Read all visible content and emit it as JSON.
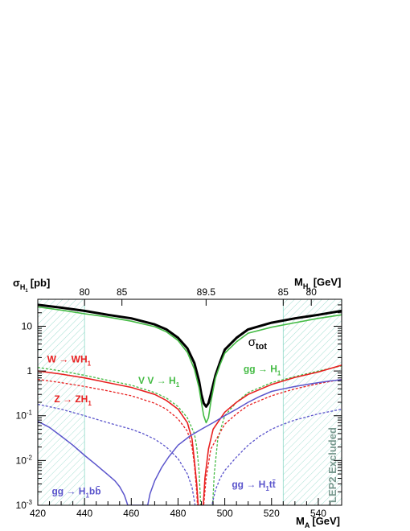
{
  "chart_data": {
    "type": "line",
    "y_axis": {
      "symbol": "σ",
      "subscript": "H",
      "subsubscript": "1",
      "unit": "[pb]",
      "scale": "log",
      "range": [
        0.001,
        40
      ],
      "ticks": [
        {
          "value": 10,
          "label": "10"
        },
        {
          "value": 1,
          "label": "1"
        },
        {
          "value": 0.1,
          "label": "10",
          "exp": "-1"
        },
        {
          "value": 0.01,
          "label": "10",
          "exp": "-2"
        },
        {
          "value": 0.001,
          "label": "10",
          "exp": "-3"
        }
      ]
    },
    "x_axis": {
      "symbol": "M",
      "subscript": "A",
      "unit": "[GeV]",
      "range": [
        420,
        550
      ],
      "ticks": [
        420,
        440,
        460,
        480,
        500,
        520,
        540
      ]
    },
    "top_axis": {
      "symbol": "M",
      "subscript": "H",
      "subsubscript": "1",
      "unit": "[GeV]",
      "ticks": [
        {
          "label": "80",
          "at": 440
        },
        {
          "label": "85",
          "at": 456
        },
        {
          "label": "89.5",
          "at": 492
        },
        {
          "label": "85",
          "at": 525
        },
        {
          "label": "80",
          "at": 537
        }
      ]
    },
    "excluded_regions": [
      {
        "from": 420,
        "to": 440
      },
      {
        "from": 525,
        "to": 550
      }
    ],
    "excluded_label": "LEP2 Excluded",
    "series": [
      {
        "key": "tot",
        "color": "#000000",
        "width": 3.0,
        "dash": "",
        "label": {
          "main": "σ",
          "sub": "tot",
          "at": [
            510,
            3.6
          ],
          "color": "#000000"
        },
        "points": [
          [
            420,
            30
          ],
          [
            430,
            26
          ],
          [
            440,
            22
          ],
          [
            450,
            18
          ],
          [
            460,
            15
          ],
          [
            470,
            11
          ],
          [
            475,
            8.5
          ],
          [
            480,
            5.5
          ],
          [
            484,
            3.2
          ],
          [
            487,
            1.5
          ],
          [
            489,
            0.6
          ],
          [
            490,
            0.3
          ],
          [
            491,
            0.19
          ],
          [
            492,
            0.16
          ],
          [
            493,
            0.19
          ],
          [
            494,
            0.3
          ],
          [
            496,
            0.8
          ],
          [
            498,
            1.6
          ],
          [
            500,
            3.0
          ],
          [
            505,
            5.5
          ],
          [
            510,
            8.5
          ],
          [
            520,
            12
          ],
          [
            530,
            15
          ],
          [
            540,
            18
          ],
          [
            550,
            22
          ]
        ]
      },
      {
        "key": "gg_H",
        "color": "#44bb44",
        "width": 1.6,
        "dash": "",
        "label": {
          "main": "gg → H",
          "sub": "1",
          "at": [
            508,
            0.95
          ],
          "color": "#44bb44"
        },
        "points": [
          [
            420,
            27
          ],
          [
            430,
            23
          ],
          [
            440,
            19
          ],
          [
            450,
            16
          ],
          [
            460,
            13
          ],
          [
            470,
            9.8
          ],
          [
            475,
            7.5
          ],
          [
            480,
            4.8
          ],
          [
            484,
            2.6
          ],
          [
            487,
            1.1
          ],
          [
            489,
            0.42
          ],
          [
            490,
            0.2
          ],
          [
            491,
            0.1
          ],
          [
            492,
            0.07
          ],
          [
            493,
            0.09
          ],
          [
            494,
            0.2
          ],
          [
            496,
            0.7
          ],
          [
            498,
            1.4
          ],
          [
            500,
            2.5
          ],
          [
            505,
            4.5
          ],
          [
            510,
            7
          ],
          [
            520,
            9.5
          ],
          [
            530,
            12
          ],
          [
            540,
            15
          ],
          [
            550,
            18
          ]
        ]
      },
      {
        "key": "VV_H",
        "color": "#44bb44",
        "width": 1.3,
        "dash": "3,2",
        "label": {
          "main": "V V → H",
          "sub": "1",
          "at": [
            463,
            0.52
          ],
          "color": "#44bb44"
        },
        "points": [
          [
            420,
            1.2
          ],
          [
            430,
            1.0
          ],
          [
            440,
            0.8
          ],
          [
            450,
            0.62
          ],
          [
            460,
            0.48
          ],
          [
            470,
            0.33
          ],
          [
            475,
            0.25
          ],
          [
            480,
            0.16
          ],
          [
            484,
            0.09
          ],
          [
            487,
            0.04
          ],
          [
            488,
            0.02
          ],
          [
            489,
            0.006
          ],
          [
            489.7,
            0.001
          ],
          [
            494.8,
            0.001
          ],
          [
            495.5,
            0.005
          ],
          [
            497,
            0.03
          ],
          [
            500,
            0.1
          ],
          [
            505,
            0.2
          ],
          [
            510,
            0.33
          ],
          [
            520,
            0.55
          ],
          [
            530,
            0.75
          ],
          [
            540,
            1.0
          ],
          [
            550,
            1.3
          ]
        ]
      },
      {
        "key": "W_WH",
        "color": "#e82020",
        "width": 1.6,
        "dash": "",
        "label": {
          "main": "W → WH",
          "sub": "1",
          "at": [
            424,
            1.55
          ],
          "color": "#e82020"
        },
        "points": [
          [
            420,
            1.0
          ],
          [
            430,
            0.85
          ],
          [
            440,
            0.7
          ],
          [
            450,
            0.55
          ],
          [
            460,
            0.43
          ],
          [
            470,
            0.3
          ],
          [
            475,
            0.22
          ],
          [
            480,
            0.14
          ],
          [
            484,
            0.07
          ],
          [
            486,
            0.03
          ],
          [
            487,
            0.01
          ],
          [
            488,
            0.003
          ],
          [
            488.6,
            0.001
          ],
          [
            490.8,
            0.001
          ],
          [
            491.5,
            0.004
          ],
          [
            493,
            0.018
          ],
          [
            495,
            0.05
          ],
          [
            500,
            0.12
          ],
          [
            505,
            0.2
          ],
          [
            510,
            0.3
          ],
          [
            520,
            0.5
          ],
          [
            530,
            0.72
          ],
          [
            540,
            0.95
          ],
          [
            550,
            1.35
          ]
        ]
      },
      {
        "key": "Z_ZH",
        "color": "#e82020",
        "width": 1.3,
        "dash": "3,2",
        "label": {
          "main": "Z → ZH",
          "sub": "1",
          "at": [
            427,
            0.2
          ],
          "color": "#e82020"
        },
        "points": [
          [
            420,
            0.65
          ],
          [
            430,
            0.55
          ],
          [
            440,
            0.45
          ],
          [
            450,
            0.36
          ],
          [
            460,
            0.28
          ],
          [
            470,
            0.19
          ],
          [
            475,
            0.14
          ],
          [
            480,
            0.085
          ],
          [
            484,
            0.045
          ],
          [
            486,
            0.02
          ],
          [
            487,
            0.008
          ],
          [
            488,
            0.002
          ],
          [
            488.3,
            0.001
          ],
          [
            491,
            0.001
          ],
          [
            492,
            0.004
          ],
          [
            494,
            0.018
          ],
          [
            500,
            0.065
          ],
          [
            505,
            0.11
          ],
          [
            510,
            0.17
          ],
          [
            520,
            0.28
          ],
          [
            530,
            0.4
          ],
          [
            540,
            0.52
          ],
          [
            550,
            0.65
          ]
        ]
      },
      {
        "key": "gg_Hbb",
        "color": "#5b55cc",
        "width": 1.5,
        "dash": "",
        "label": {
          "main": "gg → H",
          "sub": "1",
          "tail": "bb̄",
          "at": [
            426,
            0.00175
          ],
          "color": "#5b55cc"
        },
        "points": [
          [
            420,
            0.075
          ],
          [
            425,
            0.055
          ],
          [
            430,
            0.035
          ],
          [
            435,
            0.022
          ],
          [
            440,
            0.013
          ],
          [
            445,
            0.008
          ],
          [
            450,
            0.0048
          ],
          [
            453,
            0.0035
          ],
          [
            455,
            0.0026
          ],
          [
            457,
            0.0017
          ],
          [
            458,
            0.0012
          ],
          [
            458.5,
            0.001
          ],
          [
            467,
            0.001
          ],
          [
            468,
            0.0018
          ],
          [
            470,
            0.0035
          ],
          [
            473,
            0.007
          ],
          [
            476,
            0.012
          ],
          [
            480,
            0.022
          ],
          [
            485,
            0.035
          ],
          [
            490,
            0.05
          ],
          [
            495,
            0.07
          ],
          [
            500,
            0.1
          ],
          [
            505,
            0.14
          ],
          [
            510,
            0.2
          ],
          [
            515,
            0.27
          ],
          [
            520,
            0.35
          ],
          [
            525,
            0.4
          ],
          [
            530,
            0.45
          ],
          [
            535,
            0.5
          ],
          [
            540,
            0.55
          ],
          [
            545,
            0.6
          ],
          [
            550,
            0.64
          ]
        ]
      },
      {
        "key": "gg_Htt",
        "color": "#5b55cc",
        "width": 1.3,
        "dash": "3,2",
        "label": {
          "main": "gg → H",
          "sub": "1",
          "tail": "tt̄",
          "at": [
            503,
            0.0025
          ],
          "color": "#5b55cc"
        },
        "points": [
          [
            420,
            0.18
          ],
          [
            430,
            0.14
          ],
          [
            440,
            0.1
          ],
          [
            450,
            0.07
          ],
          [
            460,
            0.05
          ],
          [
            465,
            0.04
          ],
          [
            470,
            0.03
          ],
          [
            475,
            0.02
          ],
          [
            480,
            0.011
          ],
          [
            484,
            0.005
          ],
          [
            486,
            0.0025
          ],
          [
            487.3,
            0.001
          ],
          [
            494.5,
            0.001
          ],
          [
            496,
            0.0022
          ],
          [
            498,
            0.004
          ],
          [
            500,
            0.006
          ],
          [
            505,
            0.012
          ],
          [
            510,
            0.022
          ],
          [
            515,
            0.035
          ],
          [
            520,
            0.05
          ],
          [
            525,
            0.065
          ],
          [
            530,
            0.08
          ],
          [
            540,
            0.11
          ],
          [
            550,
            0.14
          ]
        ]
      }
    ]
  }
}
